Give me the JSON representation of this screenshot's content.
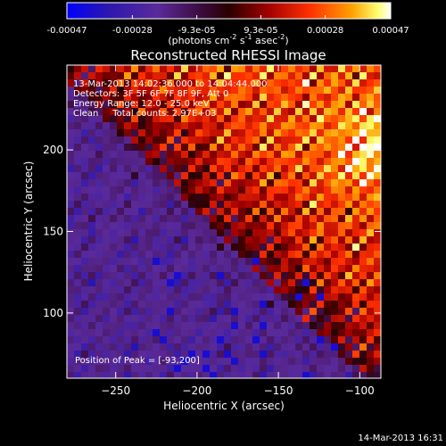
{
  "colorbar": {
    "ticks": [
      "-0.00047",
      "-0.00028",
      "-9.3e-05",
      "9.3e-05",
      "0.00028",
      "0.00047"
    ],
    "tick_values": [
      -0.00047,
      -0.00028,
      -9.3e-05,
      9.3e-05,
      0.00028,
      0.00047
    ],
    "range": [
      -0.00047,
      0.00047
    ],
    "unit_main": "(photons cm",
    "unit_exp1": "-2",
    "unit_mid1": " s",
    "unit_exp2": "-1",
    "unit_mid2": " asec",
    "unit_exp3": "-2",
    "unit_end": ")"
  },
  "chart_data": {
    "type": "heatmap",
    "title": "Reconstructed RHESSI Image",
    "xlabel": "Heliocentric X (arcsec)",
    "ylabel": "Heliocentric Y (arcsec)",
    "xlim": [
      -280,
      -87
    ],
    "ylim": [
      60,
      252
    ],
    "x_ticks": [
      -250,
      -200,
      -150,
      -100
    ],
    "y_ticks": [
      100,
      150,
      200
    ],
    "annotations": [
      "13-Mar-2013 14:02:36.000 to 14:04:44.000",
      "Detectors: 3F 5F 6F 7F 8F 9F, Att 0",
      "Energy Range: 12.0 - 25.0 keV",
      "Clean     Total counts: 2.97E+03"
    ],
    "peak_label": "Position of Peak = [-93,200]",
    "peak_position": [
      -93,
      200
    ],
    "total_counts": 2970,
    "energy_range_kev": [
      12.0,
      25.0
    ]
  },
  "footer_timestamp": "14-Mar-2013 16:31",
  "colors": {
    "background": "#000000",
    "colormap": [
      "#0000ff",
      "#3a1a8c",
      "#5a2a9a",
      "#3a0a2a",
      "#9a0000",
      "#ff2a00",
      "#ff9a00",
      "#ffff60",
      "#ffffff"
    ]
  }
}
